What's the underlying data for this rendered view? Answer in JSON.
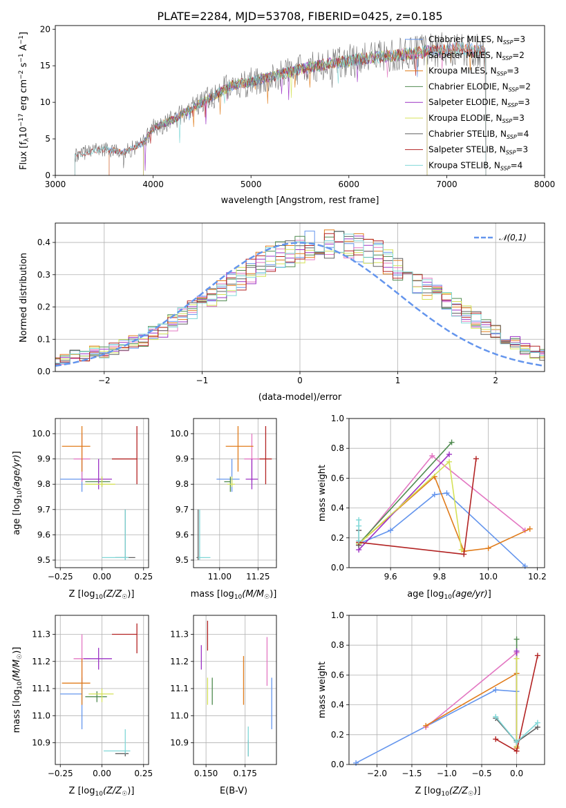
{
  "title": "PLATE=2284, MJD=53708, FIBERID=0425, z=0.185",
  "colors": {
    "Chabrier MILES": "#6495ed",
    "Salpeter MILES": "#e377c2",
    "Kroupa MILES": "#e07b1a",
    "Chabrier ELODIE": "#4f8a4f",
    "Salpeter ELODIE": "#9b30c4",
    "Kroupa ELODIE": "#d4e157",
    "Chabrier STELIB": "#606060",
    "Salpeter STELIB": "#b22222",
    "Kroupa STELIB": "#7fd7d7"
  },
  "chart_data": [
    {
      "id": "spectrum",
      "type": "line",
      "title": "PLATE=2284, MJD=53708, FIBERID=0425, z=0.185",
      "xlabel": "wavelength [Angstrom, rest frame]",
      "ylabel": "Flux [f_λ 10^-17 erg cm^-2 s^-1 A^-1]",
      "xlim": [
        3000,
        8000
      ],
      "ylim": [
        0,
        20.5
      ],
      "xticks": [
        3000,
        4000,
        5000,
        6000,
        7000,
        8000
      ],
      "yticks": [
        0,
        5,
        10,
        15,
        20
      ],
      "grid": false,
      "legend_position": "top-right",
      "series": [
        {
          "name": "Chabrier MILES",
          "nssp": "3",
          "x_range": [
            3550,
            7400
          ]
        },
        {
          "name": "Salpeter MILES",
          "nssp": "2",
          "x_range": [
            3550,
            7400
          ]
        },
        {
          "name": "Kroupa MILES",
          "nssp": "3",
          "x_range": [
            3550,
            7400
          ]
        },
        {
          "name": "Chabrier ELODIE",
          "nssp": "2",
          "x_range": [
            3900,
            6800
          ]
        },
        {
          "name": "Salpeter ELODIE",
          "nssp": "3",
          "x_range": [
            3900,
            6800
          ]
        },
        {
          "name": "Kroupa ELODIE",
          "nssp": "3",
          "x_range": [
            3900,
            6800
          ]
        },
        {
          "name": "Chabrier STELIB",
          "nssp": "4",
          "x_range": [
            3200,
            7400
          ]
        },
        {
          "name": "Salpeter STELIB",
          "nssp": "3",
          "x_range": [
            3200,
            7400
          ]
        },
        {
          "name": "Kroupa STELIB",
          "nssp": "4",
          "x_range": [
            3200,
            7400
          ]
        }
      ],
      "continuum": {
        "x": [
          3200,
          3500,
          3700,
          3900,
          4000,
          4200,
          4500,
          4800,
          5000,
          5300,
          5600,
          5900,
          6200,
          6500,
          6800,
          7100,
          7400
        ],
        "y": [
          2.8,
          3.6,
          3.2,
          4.4,
          6.5,
          7.6,
          10.0,
          12.3,
          12.8,
          13.8,
          14.8,
          15.5,
          16.1,
          16.4,
          17.0,
          17.4,
          16.9
        ]
      }
    },
    {
      "id": "residuals",
      "type": "histogram",
      "xlabel": "(data-model)/error",
      "ylabel": "Normed distribution",
      "xlim": [
        -2.5,
        2.5
      ],
      "ylim": [
        0,
        0.46
      ],
      "xticks": [
        -2,
        -1,
        0,
        1,
        2
      ],
      "yticks": [
        0.0,
        0.1,
        0.2,
        0.3,
        0.4
      ],
      "grid": true,
      "legend": "𝒩(0,1)",
      "legend_position": "top-right",
      "bin_width": 0.1,
      "base_profile": [
        0.03,
        0.04,
        0.05,
        0.05,
        0.06,
        0.06,
        0.07,
        0.08,
        0.09,
        0.1,
        0.12,
        0.13,
        0.15,
        0.17,
        0.19,
        0.21,
        0.23,
        0.25,
        0.27,
        0.29,
        0.31,
        0.33,
        0.35,
        0.36,
        0.37,
        0.38,
        0.39,
        0.4,
        0.4,
        0.4,
        0.39,
        0.38,
        0.37,
        0.36,
        0.34,
        0.32,
        0.3,
        0.28,
        0.26,
        0.24,
        0.22,
        0.2,
        0.18,
        0.16,
        0.14,
        0.12,
        0.1,
        0.09,
        0.07,
        0.06,
        0.05
      ]
    },
    {
      "id": "age-vs-Z",
      "type": "errorbar",
      "xlabel": "Z [log10(Z/Z☉)]",
      "ylabel": "age  [log10(age/yr)]",
      "xlim": [
        -0.28,
        0.28
      ],
      "ylim": [
        9.47,
        10.06
      ],
      "xticks": [
        -0.25,
        0.0,
        0.25
      ],
      "yticks": [
        9.5,
        9.6,
        9.7,
        9.8,
        9.9,
        10.0
      ],
      "grid": true,
      "points": [
        {
          "series": "Chabrier MILES",
          "x": -0.12,
          "y": 9.82,
          "xerr": [
            0.13,
            0.0
          ],
          "yerr": [
            0.05,
            0.08
          ]
        },
        {
          "series": "Salpeter MILES",
          "x": -0.12,
          "y": 9.9,
          "xerr": [
            0.05,
            0.05
          ],
          "yerr": [
            0.09,
            0.1
          ]
        },
        {
          "series": "Kroupa MILES",
          "x": -0.12,
          "y": 9.95,
          "xerr": [
            0.12,
            0.05
          ],
          "yerr": [
            0.1,
            0.08
          ]
        },
        {
          "series": "Chabrier ELODIE",
          "x": 0.0,
          "y": 9.81,
          "xerr": [
            0.1,
            0.05
          ],
          "yerr": [
            0.02,
            0.02
          ]
        },
        {
          "series": "Salpeter ELODIE",
          "x": -0.02,
          "y": 9.82,
          "xerr": [
            0.1,
            0.08
          ],
          "yerr": [
            0.04,
            0.08
          ]
        },
        {
          "series": "Kroupa ELODIE",
          "x": 0.0,
          "y": 9.8,
          "xerr": [
            0.1,
            0.08
          ],
          "yerr": [
            0.01,
            0.03
          ]
        },
        {
          "series": "Chabrier STELIB",
          "x": 0.14,
          "y": 9.51,
          "xerr": [
            0.06,
            0.06
          ],
          "yerr": [
            0.01,
            0.19
          ]
        },
        {
          "series": "Salpeter STELIB",
          "x": 0.21,
          "y": 9.9,
          "xerr": [
            0.15,
            0.0
          ],
          "yerr": [
            0.1,
            0.13
          ]
        },
        {
          "series": "Kroupa STELIB",
          "x": 0.14,
          "y": 9.51,
          "xerr": [
            0.14,
            0.02
          ],
          "yerr": [
            0.01,
            0.19
          ]
        }
      ]
    },
    {
      "id": "age-vs-mass",
      "type": "errorbar",
      "xlabel": "mass [log10(M/M☉)]",
      "ylabel": "",
      "xlim": [
        10.83,
        11.37
      ],
      "ylim": [
        9.47,
        10.06
      ],
      "xticks": [
        11.0,
        11.25
      ],
      "yticks": [
        9.5,
        9.6,
        9.7,
        9.8,
        9.9,
        10.0
      ],
      "grid": true,
      "points": [
        {
          "series": "Chabrier MILES",
          "x": 11.08,
          "y": 9.82,
          "xerr": [
            0.1,
            0.05
          ],
          "yerr": [
            0.05,
            0.08
          ]
        },
        {
          "series": "Salpeter MILES",
          "x": 11.21,
          "y": 9.9,
          "xerr": [
            0.05,
            0.05
          ],
          "yerr": [
            0.09,
            0.1
          ]
        },
        {
          "series": "Kroupa MILES",
          "x": 11.12,
          "y": 9.95,
          "xerr": [
            0.08,
            0.1
          ],
          "yerr": [
            0.1,
            0.08
          ]
        },
        {
          "series": "Chabrier ELODIE",
          "x": 11.07,
          "y": 9.81,
          "xerr": [
            0.04,
            0.0
          ],
          "yerr": [
            0.04,
            0.02
          ]
        },
        {
          "series": "Salpeter ELODIE",
          "x": 11.21,
          "y": 9.82,
          "xerr": [
            0.04,
            0.04
          ],
          "yerr": [
            0.04,
            0.08
          ]
        },
        {
          "series": "Kroupa ELODIE",
          "x": 11.08,
          "y": 9.8,
          "xerr": [
            0.03,
            0.02
          ],
          "yerr": [
            0.01,
            0.03
          ]
        },
        {
          "series": "Chabrier STELIB",
          "x": 10.86,
          "y": 9.51,
          "xerr": [
            0.01,
            0.01
          ],
          "yerr": [
            0.01,
            0.19
          ]
        },
        {
          "series": "Salpeter STELIB",
          "x": 11.3,
          "y": 9.9,
          "xerr": [
            0.04,
            0.04
          ],
          "yerr": [
            0.1,
            0.13
          ]
        },
        {
          "series": "Kroupa STELIB",
          "x": 10.87,
          "y": 9.51,
          "xerr": [
            0.01,
            0.07
          ],
          "yerr": [
            0.01,
            0.19
          ]
        }
      ]
    },
    {
      "id": "weight-vs-age",
      "type": "line",
      "xlabel": "age  [log10(age/yr)]",
      "ylabel": "mass weight",
      "xlim": [
        9.43,
        10.23
      ],
      "ylim": [
        0,
        1.0
      ],
      "xticks": [
        9.6,
        9.8,
        10.0,
        10.2
      ],
      "yticks": [
        0.0,
        0.2,
        0.4,
        0.6,
        0.8,
        1.0
      ],
      "grid": true,
      "series": [
        {
          "name": "Chabrier MILES",
          "x": [
            9.47,
            9.6,
            9.78,
            9.83,
            10.15
          ],
          "y": [
            0.16,
            0.25,
            0.49,
            0.5,
            0.01
          ]
        },
        {
          "name": "Salpeter MILES",
          "x": [
            9.47,
            9.77,
            10.15
          ],
          "y": [
            0.15,
            0.75,
            0.25
          ]
        },
        {
          "name": "Kroupa MILES",
          "x": [
            9.47,
            9.78,
            9.9,
            10.0,
            10.17
          ],
          "y": [
            0.16,
            0.61,
            0.11,
            0.13,
            0.26
          ]
        },
        {
          "name": "Chabrier ELODIE",
          "x": [
            9.47,
            9.85
          ],
          "y": [
            0.16,
            0.84
          ]
        },
        {
          "name": "Salpeter ELODIE",
          "x": [
            9.47,
            9.84
          ],
          "y": [
            0.12,
            0.76
          ]
        },
        {
          "name": "Kroupa ELODIE",
          "x": [
            9.47,
            9.84,
            9.89
          ],
          "y": [
            0.16,
            0.71,
            0.12
          ]
        },
        {
          "name": "Chabrier STELIB",
          "x": [
            9.47,
            9.47
          ],
          "y": [
            0.15,
            0.25
          ]
        },
        {
          "name": "Salpeter STELIB",
          "x": [
            9.47,
            9.9,
            9.95
          ],
          "y": [
            0.17,
            0.09,
            0.73
          ]
        },
        {
          "name": "Kroupa STELIB",
          "x": [
            9.47,
            9.47,
            9.47
          ],
          "y": [
            0.18,
            0.28,
            0.32
          ]
        }
      ]
    },
    {
      "id": "mass-vs-Z",
      "type": "errorbar",
      "xlabel": "Z [log10(Z/Z☉)]",
      "ylabel": "mass [log10(M/M☉)]",
      "xlim": [
        -0.28,
        0.28
      ],
      "ylim": [
        10.82,
        11.37
      ],
      "xticks": [
        -0.25,
        0.0,
        0.25
      ],
      "yticks": [
        10.9,
        11.0,
        11.1,
        11.2,
        11.3
      ],
      "grid": true,
      "points": [
        {
          "series": "Chabrier MILES",
          "x": -0.12,
          "y": 11.08,
          "xerr": [
            0.13,
            0.0
          ],
          "yerr": [
            0.13,
            0.06
          ]
        },
        {
          "series": "Salpeter MILES",
          "x": -0.12,
          "y": 11.21,
          "xerr": [
            0.05,
            0.05
          ],
          "yerr": [
            0.09,
            0.09
          ]
        },
        {
          "series": "Kroupa MILES",
          "x": -0.12,
          "y": 11.12,
          "xerr": [
            0.12,
            0.05
          ],
          "yerr": [
            0.08,
            0.09
          ]
        },
        {
          "series": "Chabrier ELODIE",
          "x": -0.03,
          "y": 11.07,
          "xerr": [
            0.07,
            0.06
          ],
          "yerr": [
            0.02,
            0.02
          ]
        },
        {
          "series": "Salpeter ELODIE",
          "x": -0.02,
          "y": 11.21,
          "xerr": [
            0.09,
            0.08
          ],
          "yerr": [
            0.04,
            0.04
          ]
        },
        {
          "series": "Kroupa ELODIE",
          "x": 0.0,
          "y": 11.08,
          "xerr": [
            0.08,
            0.07
          ],
          "yerr": [
            0.03,
            0.02
          ]
        },
        {
          "series": "Chabrier STELIB",
          "x": 0.14,
          "y": 10.86,
          "xerr": [
            0.06,
            0.02
          ],
          "yerr": [
            0.01,
            0.01
          ]
        },
        {
          "series": "Salpeter STELIB",
          "x": 0.21,
          "y": 11.3,
          "xerr": [
            0.15,
            0.0
          ],
          "yerr": [
            0.07,
            0.04
          ]
        },
        {
          "series": "Kroupa STELIB",
          "x": 0.14,
          "y": 10.87,
          "xerr": [
            0.13,
            0.03
          ],
          "yerr": [
            0.01,
            0.08
          ]
        }
      ]
    },
    {
      "id": "mass-vs-ebv",
      "type": "errorbar",
      "xlabel": "E(B-V)",
      "ylabel": "",
      "xlim": [
        0.142,
        0.195
      ],
      "ylim": [
        10.82,
        11.37
      ],
      "xticks": [
        0.15,
        0.175
      ],
      "yticks": [
        10.9,
        11.0,
        11.1,
        11.2,
        11.3
      ],
      "grid": true,
      "points": [
        {
          "series": "Chabrier MILES",
          "x": 0.192,
          "y": 11.04,
          "xerr": [
            0,
            0
          ],
          "yerr": [
            0.09,
            0.1
          ]
        },
        {
          "series": "Salpeter MILES",
          "x": 0.189,
          "y": 11.2,
          "xerr": [
            0,
            0
          ],
          "yerr": [
            0.09,
            0.09
          ]
        },
        {
          "series": "Kroupa MILES",
          "x": 0.174,
          "y": 11.12,
          "xerr": [
            0,
            0
          ],
          "yerr": [
            0.08,
            0.1
          ]
        },
        {
          "series": "Chabrier ELODIE",
          "x": 0.154,
          "y": 11.1,
          "xerr": [
            0,
            0
          ],
          "yerr": [
            0.06,
            0.04
          ]
        },
        {
          "series": "Salpeter ELODIE",
          "x": 0.147,
          "y": 11.21,
          "xerr": [
            0,
            0
          ],
          "yerr": [
            0.04,
            0.05
          ]
        },
        {
          "series": "Kroupa ELODIE",
          "x": 0.151,
          "y": 11.09,
          "xerr": [
            0,
            0
          ],
          "yerr": [
            0.05,
            0.05
          ]
        },
        {
          "series": "Chabrier STELIB",
          "x": 0.177,
          "y": 10.88,
          "xerr": [
            0,
            0
          ],
          "yerr": [
            0.03,
            0.03
          ]
        },
        {
          "series": "Salpeter STELIB",
          "x": 0.151,
          "y": 11.3,
          "xerr": [
            0,
            0
          ],
          "yerr": [
            0.06,
            0.05
          ]
        },
        {
          "series": "Kroupa STELIB",
          "x": 0.177,
          "y": 10.9,
          "xerr": [
            0,
            0
          ],
          "yerr": [
            0.05,
            0.06
          ]
        }
      ]
    },
    {
      "id": "weight-vs-Z",
      "type": "line",
      "xlabel": "Z [log10(Z/Z☉)]",
      "ylabel": "mass weight",
      "xlim": [
        -2.4,
        0.4
      ],
      "ylim": [
        0,
        1.0
      ],
      "xticks": [
        -2.0,
        -1.5,
        -1.0,
        -0.5,
        0.0
      ],
      "yticks": [
        0.0,
        0.2,
        0.4,
        0.6,
        0.8,
        1.0
      ],
      "grid": true,
      "series": [
        {
          "name": "Chabrier MILES",
          "x": [
            -2.3,
            -0.3,
            0.0,
            0.0
          ],
          "y": [
            0.01,
            0.5,
            0.49,
            0.16
          ]
        },
        {
          "name": "Salpeter MILES",
          "x": [
            -1.3,
            0.0,
            0.0
          ],
          "y": [
            0.25,
            0.75,
            0.15
          ]
        },
        {
          "name": "Kroupa MILES",
          "x": [
            -1.3,
            0.0,
            0.0
          ],
          "y": [
            0.26,
            0.61,
            0.11
          ]
        },
        {
          "name": "Chabrier ELODIE",
          "x": [
            0.0,
            0.0
          ],
          "y": [
            0.84,
            0.16
          ]
        },
        {
          "name": "Salpeter ELODIE",
          "x": [
            0.0,
            0.0
          ],
          "y": [
            0.76,
            0.12
          ]
        },
        {
          "name": "Kroupa ELODIE",
          "x": [
            0.0,
            0.0
          ],
          "y": [
            0.71,
            0.12
          ]
        },
        {
          "name": "Chabrier STELIB",
          "x": [
            -0.3,
            0.0,
            0.3
          ],
          "y": [
            0.31,
            0.15,
            0.25
          ]
        },
        {
          "name": "Salpeter STELIB",
          "x": [
            -0.3,
            0.0,
            0.3
          ],
          "y": [
            0.17,
            0.09,
            0.73
          ]
        },
        {
          "name": "Kroupa STELIB",
          "x": [
            -0.3,
            0.0,
            0.3
          ],
          "y": [
            0.32,
            0.15,
            0.28
          ]
        }
      ]
    }
  ]
}
